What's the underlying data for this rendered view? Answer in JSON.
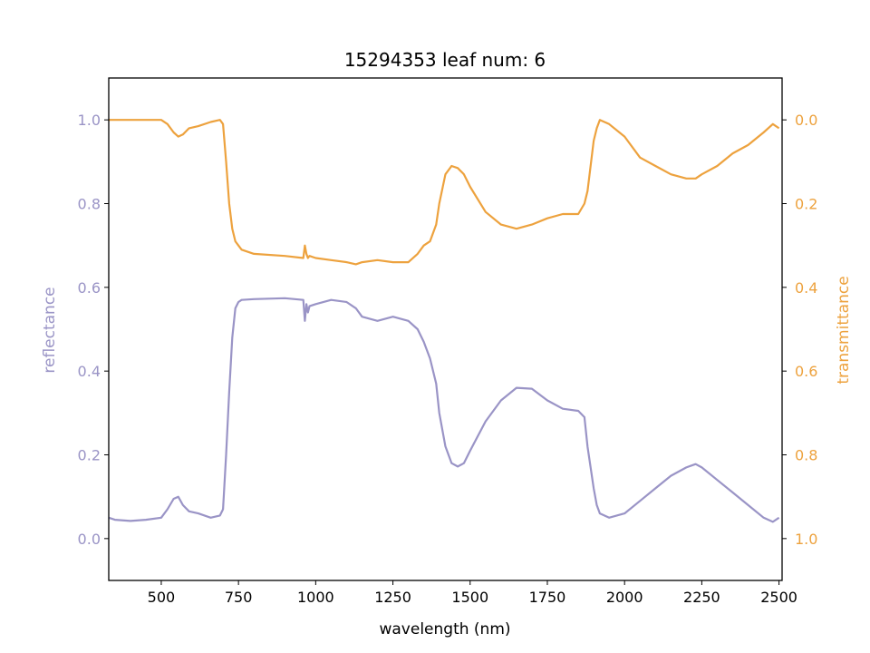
{
  "colors": {
    "reflectance": "#9a94c6",
    "transmittance": "#eda23e",
    "axis": "#000000"
  },
  "chart_data": {
    "type": "line",
    "title": "15294353 leaf num: 6",
    "xlabel": "wavelength (nm)",
    "ylabel_left": "reflectance",
    "ylabel_right": "transmittance",
    "xlim": [
      330,
      2510
    ],
    "ylim_left": [
      -0.1,
      1.1
    ],
    "ylim_right": [
      1.1,
      -0.1
    ],
    "right_axis_inverted": true,
    "grid": false,
    "x_ticks": [
      500,
      750,
      1000,
      1250,
      1500,
      1750,
      2000,
      2250,
      2500
    ],
    "x_tick_labels": [
      "500",
      "750",
      "1000",
      "1250",
      "1500",
      "1750",
      "2000",
      "2250",
      "2500"
    ],
    "left_ticks": [
      0.0,
      0.2,
      0.4,
      0.6,
      0.8,
      1.0
    ],
    "left_tick_labels": [
      "0.0",
      "0.2",
      "0.4",
      "0.6",
      "0.8",
      "1.0"
    ],
    "right_ticks": [
      0.0,
      0.2,
      0.4,
      0.6,
      0.8,
      1.0
    ],
    "right_tick_labels": [
      "0.0",
      "0.2",
      "0.4",
      "0.6",
      "0.8",
      "1.0"
    ],
    "series": [
      {
        "name": "reflectance",
        "axis": "left",
        "x": [
          330,
          350,
          400,
          450,
          500,
          520,
          540,
          555,
          570,
          590,
          620,
          660,
          690,
          700,
          710,
          720,
          730,
          740,
          750,
          760,
          800,
          900,
          960,
          965,
          970,
          975,
          980,
          1000,
          1050,
          1100,
          1130,
          1150,
          1200,
          1250,
          1300,
          1330,
          1350,
          1370,
          1390,
          1400,
          1420,
          1440,
          1460,
          1480,
          1500,
          1550,
          1600,
          1650,
          1700,
          1750,
          1800,
          1850,
          1870,
          1880,
          1900,
          1910,
          1920,
          1950,
          2000,
          2050,
          2100,
          2150,
          2200,
          2230,
          2250,
          2300,
          2350,
          2400,
          2450,
          2480,
          2500
        ],
        "y": [
          0.05,
          0.045,
          0.042,
          0.045,
          0.05,
          0.07,
          0.095,
          0.1,
          0.08,
          0.065,
          0.06,
          0.05,
          0.055,
          0.07,
          0.2,
          0.35,
          0.48,
          0.55,
          0.565,
          0.57,
          0.572,
          0.574,
          0.57,
          0.52,
          0.56,
          0.54,
          0.555,
          0.56,
          0.57,
          0.565,
          0.55,
          0.53,
          0.52,
          0.53,
          0.52,
          0.5,
          0.47,
          0.43,
          0.37,
          0.3,
          0.22,
          0.18,
          0.172,
          0.18,
          0.21,
          0.28,
          0.33,
          0.36,
          0.358,
          0.33,
          0.31,
          0.305,
          0.29,
          0.22,
          0.12,
          0.08,
          0.06,
          0.05,
          0.06,
          0.09,
          0.12,
          0.15,
          0.17,
          0.178,
          0.17,
          0.14,
          0.11,
          0.08,
          0.05,
          0.04,
          0.05
        ]
      },
      {
        "name": "transmittance",
        "axis": "right",
        "x": [
          330,
          350,
          400,
          450,
          500,
          520,
          540,
          555,
          570,
          590,
          620,
          660,
          690,
          700,
          710,
          720,
          730,
          740,
          750,
          760,
          800,
          900,
          960,
          965,
          970,
          975,
          980,
          1000,
          1050,
          1100,
          1130,
          1150,
          1200,
          1250,
          1300,
          1330,
          1350,
          1370,
          1390,
          1400,
          1420,
          1440,
          1460,
          1480,
          1500,
          1550,
          1600,
          1650,
          1700,
          1750,
          1800,
          1850,
          1870,
          1880,
          1900,
          1910,
          1920,
          1950,
          2000,
          2050,
          2100,
          2150,
          2200,
          2230,
          2250,
          2300,
          2350,
          2400,
          2450,
          2480,
          2500
        ],
        "y": [
          0.0,
          0.0,
          0.0,
          0.0,
          0.0,
          0.01,
          0.03,
          0.04,
          0.035,
          0.02,
          0.015,
          0.005,
          0.0,
          0.01,
          0.1,
          0.2,
          0.26,
          0.29,
          0.3,
          0.31,
          0.32,
          0.325,
          0.33,
          0.3,
          0.32,
          0.33,
          0.325,
          0.33,
          0.335,
          0.34,
          0.345,
          0.34,
          0.335,
          0.34,
          0.34,
          0.32,
          0.3,
          0.29,
          0.25,
          0.2,
          0.13,
          0.11,
          0.115,
          0.13,
          0.16,
          0.22,
          0.25,
          0.26,
          0.25,
          0.235,
          0.225,
          0.225,
          0.2,
          0.17,
          0.05,
          0.02,
          0.0,
          0.01,
          0.04,
          0.09,
          0.11,
          0.13,
          0.14,
          0.14,
          0.13,
          0.11,
          0.08,
          0.06,
          0.03,
          0.01,
          0.02
        ]
      }
    ]
  }
}
